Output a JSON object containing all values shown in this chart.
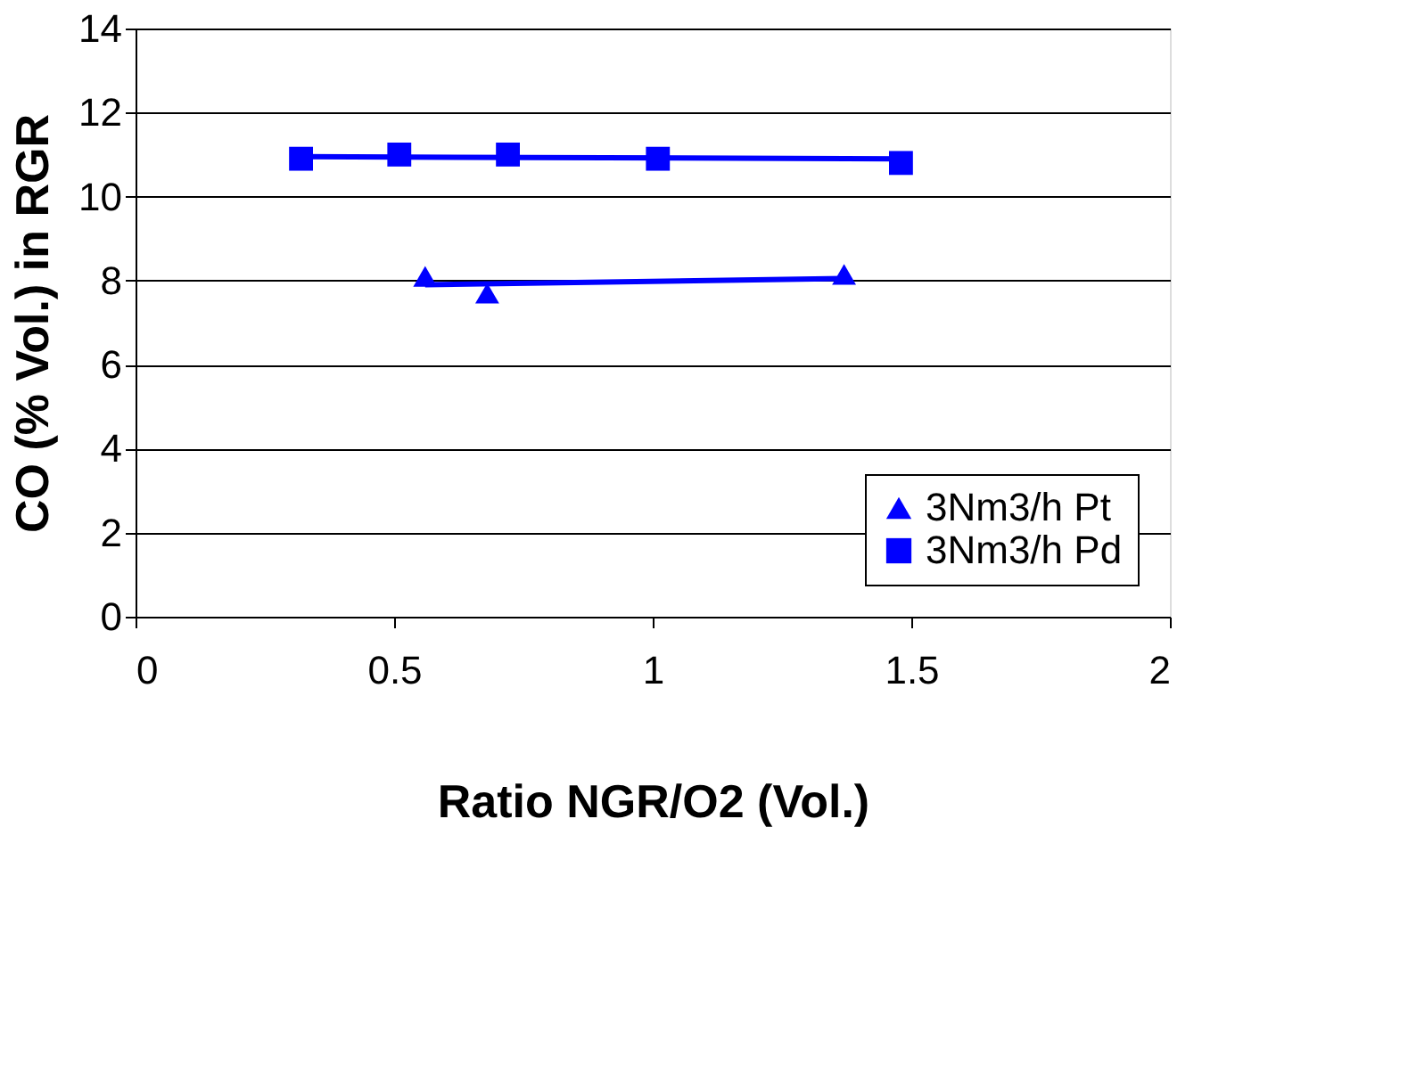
{
  "chart_data": {
    "type": "scatter",
    "xlabel": "Ratio NGR/O2 (Vol.)",
    "ylabel": "CO (% Vol.) in RGR",
    "xlim": [
      0,
      2
    ],
    "xticks": [
      0,
      0.5,
      1,
      1.5,
      2
    ],
    "ylim": [
      0,
      14
    ],
    "yticks": [
      0,
      2,
      4,
      6,
      8,
      10,
      12,
      14
    ],
    "grid": "y",
    "legend": "bottom right",
    "series": [
      {
        "name": "3Nm3/h Pt",
        "marker": "triangle",
        "color": "#0000ff",
        "x": [
          0.56,
          0.68,
          1.37
        ],
        "values": [
          8.1,
          7.7,
          8.15
        ]
      },
      {
        "name": "3Nm3/h Pd",
        "marker": "square",
        "color": "#0000ff",
        "x": [
          0.32,
          0.51,
          0.72,
          1.01,
          1.48
        ],
        "values": [
          10.9,
          11.0,
          11.0,
          10.9,
          10.8
        ]
      },
      {
        "type": "line",
        "color": "#0000ff",
        "x": [
          0.56,
          1.37
        ],
        "values": [
          7.9,
          8.05
        ]
      },
      {
        "type": "line",
        "color": "#0000ff",
        "x": [
          0.32,
          1.48
        ],
        "values": [
          10.95,
          10.9
        ]
      }
    ]
  }
}
